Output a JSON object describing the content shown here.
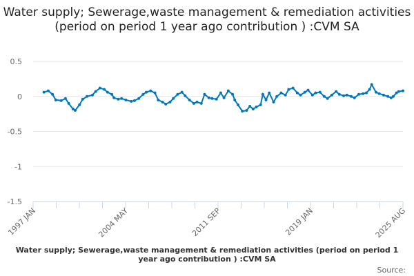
{
  "chart_data": {
    "type": "line",
    "title": "Water supply; Sewerage,waste management & remediation activities (period on period 1 year ago contribution ) :CVM SA",
    "xlabel": "Water supply; Sewerage,waste management & remediation activities (period on period 1 year ago contribution ) :CVM SA",
    "ylabel": "",
    "source_label": "Source:",
    "ylim": [
      -1.5,
      0.5
    ],
    "yticks": [
      0.5,
      0,
      -0.5,
      -1,
      -1.5
    ],
    "ytick_labels": [
      "0.5",
      "0",
      "-0.5",
      "-1",
      "-1.5"
    ],
    "xlim": [
      "1997-01",
      "2025-08"
    ],
    "xtick_labels": [
      "1997 JAN",
      "2004 MAY",
      "2011 SEP",
      "2019 JAN",
      "2025 AUG"
    ],
    "grid": "horizontal",
    "color": "#0076c0",
    "series": [
      {
        "points": [
          [
            "1997-11",
            0.06
          ],
          [
            "1998-03",
            0.08
          ],
          [
            "1998-07",
            0.03
          ],
          [
            "1998-10",
            -0.05
          ],
          [
            "1999-03",
            -0.06
          ],
          [
            "1999-07",
            -0.03
          ],
          [
            "1999-10",
            -0.1
          ],
          [
            "2000-02",
            -0.18
          ],
          [
            "2000-04",
            -0.2
          ],
          [
            "2000-08",
            -0.12
          ],
          [
            "2000-11",
            -0.04
          ],
          [
            "2001-03",
            0.0
          ],
          [
            "2001-08",
            0.02
          ],
          [
            "2001-11",
            0.07
          ],
          [
            "2002-03",
            0.12
          ],
          [
            "2002-07",
            0.1
          ],
          [
            "2002-10",
            0.06
          ],
          [
            "2003-02",
            0.03
          ],
          [
            "2003-04",
            -0.02
          ],
          [
            "2003-08",
            -0.04
          ],
          [
            "2003-11",
            -0.03
          ],
          [
            "2004-03",
            -0.05
          ],
          [
            "2004-08",
            -0.07
          ],
          [
            "2004-11",
            -0.06
          ],
          [
            "2005-03",
            -0.03
          ],
          [
            "2005-07",
            0.03
          ],
          [
            "2005-10",
            0.06
          ],
          [
            "2006-02",
            0.08
          ],
          [
            "2006-06",
            0.05
          ],
          [
            "2006-09",
            -0.05
          ],
          [
            "2007-01",
            -0.08
          ],
          [
            "2007-04",
            -0.11
          ],
          [
            "2007-08",
            -0.08
          ],
          [
            "2007-11",
            -0.03
          ],
          [
            "2008-03",
            0.03
          ],
          [
            "2008-07",
            0.06
          ],
          [
            "2008-10",
            0.01
          ],
          [
            "2009-02",
            -0.05
          ],
          [
            "2009-06",
            -0.1
          ],
          [
            "2009-09",
            -0.08
          ],
          [
            "2010-01",
            -0.1
          ],
          [
            "2010-04",
            0.03
          ],
          [
            "2010-08",
            -0.02
          ],
          [
            "2010-11",
            -0.03
          ],
          [
            "2011-03",
            -0.04
          ],
          [
            "2011-07",
            0.05
          ],
          [
            "2011-10",
            -0.02
          ],
          [
            "2012-02",
            0.08
          ],
          [
            "2012-06",
            0.03
          ],
          [
            "2012-08",
            -0.05
          ],
          [
            "2012-11",
            -0.12
          ],
          [
            "2013-03",
            -0.21
          ],
          [
            "2013-07",
            -0.2
          ],
          [
            "2013-10",
            -0.14
          ],
          [
            "2014-01",
            -0.18
          ],
          [
            "2014-04",
            -0.15
          ],
          [
            "2014-08",
            -0.12
          ],
          [
            "2014-10",
            0.03
          ],
          [
            "2015-01",
            -0.05
          ],
          [
            "2015-04",
            0.05
          ],
          [
            "2015-08",
            -0.08
          ],
          [
            "2015-11",
            0.0
          ],
          [
            "2016-03",
            0.05
          ],
          [
            "2016-07",
            0.02
          ],
          [
            "2016-10",
            0.1
          ],
          [
            "2017-02",
            0.12
          ],
          [
            "2017-06",
            0.05
          ],
          [
            "2017-09",
            0.02
          ],
          [
            "2018-01",
            0.06
          ],
          [
            "2018-04",
            0.09
          ],
          [
            "2018-08",
            0.02
          ],
          [
            "2018-11",
            0.05
          ],
          [
            "2019-03",
            0.06
          ],
          [
            "2019-07",
            0.0
          ],
          [
            "2019-10",
            -0.03
          ],
          [
            "2020-02",
            0.02
          ],
          [
            "2020-06",
            0.07
          ],
          [
            "2020-09",
            0.03
          ],
          [
            "2021-01",
            0.01
          ],
          [
            "2021-04",
            0.02
          ],
          [
            "2021-08",
            0.0
          ],
          [
            "2021-11",
            -0.02
          ],
          [
            "2022-03",
            0.03
          ],
          [
            "2022-07",
            0.04
          ],
          [
            "2022-10",
            0.05
          ],
          [
            "2023-01",
            0.1
          ],
          [
            "2023-03",
            0.17
          ],
          [
            "2023-07",
            0.06
          ],
          [
            "2023-10",
            0.04
          ],
          [
            "2024-02",
            0.02
          ],
          [
            "2024-06",
            0.0
          ],
          [
            "2024-09",
            -0.02
          ],
          [
            "2024-11",
            0.0
          ],
          [
            "2025-02",
            0.05
          ],
          [
            "2025-04",
            0.07
          ],
          [
            "2025-08",
            0.08
          ]
        ]
      }
    ]
  }
}
